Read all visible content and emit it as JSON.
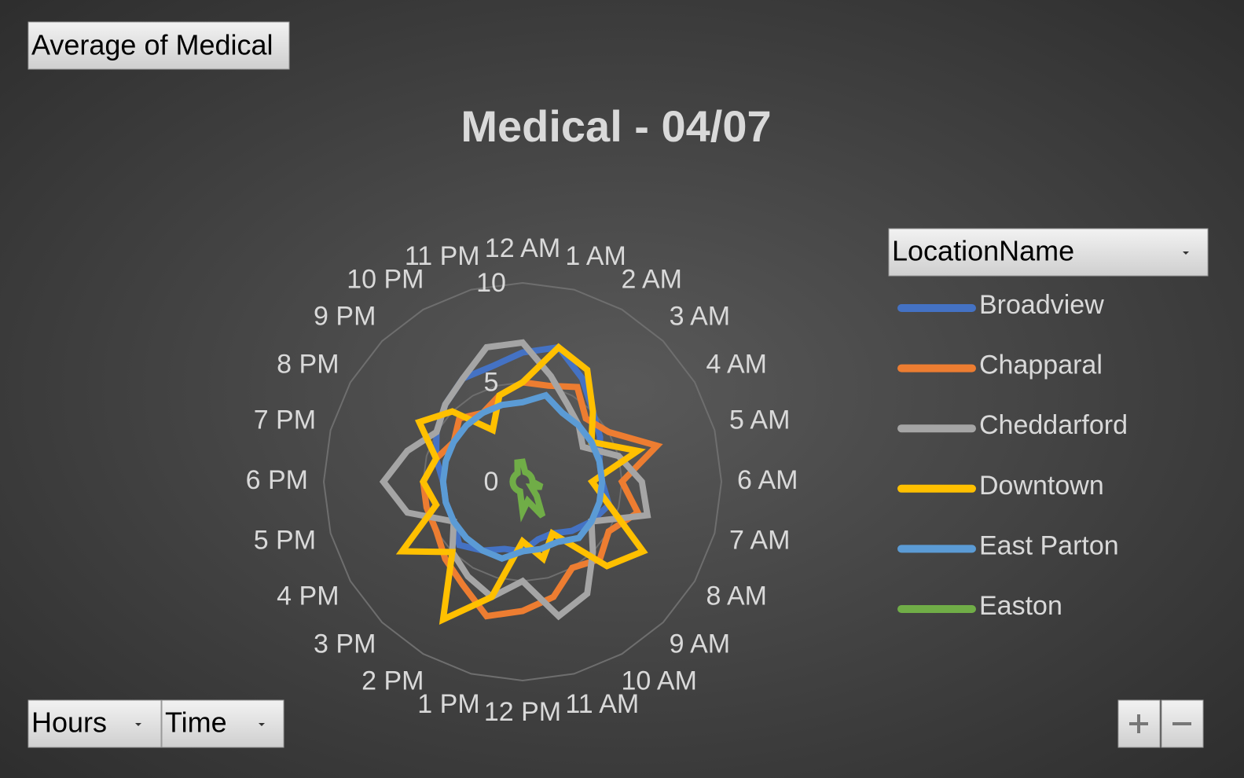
{
  "ui": {
    "value_field_button": "Average of Medical",
    "legend_field_button": "LocationName",
    "axis_field_buttons": [
      "Hours",
      "Time"
    ]
  },
  "chart_data": {
    "type": "radar",
    "title": "Medical - 04/07",
    "categories": [
      "12 AM",
      "1 AM",
      "2 AM",
      "3 AM",
      "4 AM",
      "5 AM",
      "6 AM",
      "7 AM",
      "8 AM",
      "9 AM",
      "10 AM",
      "11 AM",
      "12 PM",
      "1 PM",
      "2 PM",
      "3 PM",
      "4 PM",
      "5 PM",
      "6 PM",
      "7 PM",
      "8 PM",
      "9 PM",
      "10 PM",
      "11 PM"
    ],
    "rlim": [
      0,
      10
    ],
    "rticks": [
      0,
      5,
      10
    ],
    "grid": true,
    "legend": "right",
    "series": [
      {
        "name": "Broadview",
        "color": "#4472c4",
        "values": [
          6.5,
          7,
          6,
          5,
          4.5,
          4,
          4,
          4.5,
          4,
          3.5,
          3,
          3,
          3.5,
          3.5,
          4,
          4.5,
          4,
          4,
          4,
          4.5,
          5,
          5.5,
          6,
          6
        ]
      },
      {
        "name": "Chapparal",
        "color": "#ed7d31",
        "values": [
          5,
          5,
          5.5,
          4.5,
          5,
          7,
          5,
          6,
          5,
          5.5,
          5,
          6,
          6.5,
          7,
          6,
          5.5,
          5,
          5,
          5,
          4.5,
          4,
          4.5,
          4,
          4.5
        ]
      },
      {
        "name": "Cheddarford",
        "color": "#a5a5a5",
        "values": [
          7,
          5.5,
          4.5,
          4,
          3.5,
          5,
          6,
          6.5,
          4,
          5,
          6.5,
          7,
          5,
          6,
          5.5,
          5,
          4,
          6,
          7,
          6,
          5,
          5.5,
          6,
          7
        ]
      },
      {
        "name": "Downtown",
        "color": "#ffc000",
        "values": [
          5,
          7,
          6.5,
          5,
          4,
          6,
          3.5,
          4.5,
          7,
          6,
          3,
          4,
          3,
          6,
          8,
          5,
          7,
          4.5,
          5,
          4.5,
          6,
          5,
          3,
          4.5
        ]
      },
      {
        "name": "East Parton",
        "color": "#5b9bd5",
        "values": [
          4,
          4.5,
          4,
          4,
          4,
          4,
          4,
          4,
          4,
          4,
          3.5,
          3.5,
          3.5,
          4,
          4,
          4,
          4,
          4,
          4,
          4,
          4,
          4,
          4,
          4
        ]
      },
      {
        "name": "Easton",
        "color": "#70ad47",
        "values": [
          1,
          0.5,
          0.5,
          0.5,
          0.5,
          0.5,
          0.5,
          1,
          0.5,
          1,
          2,
          1,
          1.5,
          0.5,
          0.5,
          0.5,
          0.5,
          0.5,
          0.5,
          0.5,
          0.5,
          0.5,
          0.5,
          1
        ]
      }
    ]
  }
}
